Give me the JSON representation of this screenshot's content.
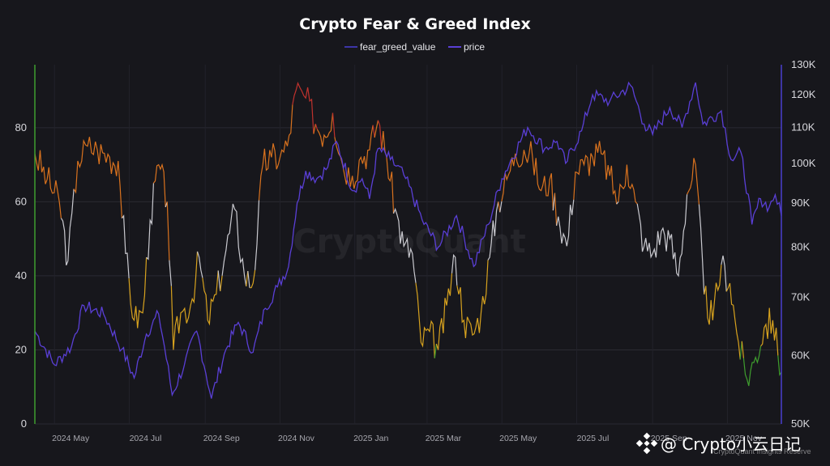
{
  "chart_data": {
    "type": "line",
    "title": "Crypto Fear & Greed Index",
    "legend_position": "top-center",
    "grid": true,
    "x_range": [
      "2024-04-15",
      "2025-12-15"
    ],
    "x_ticks": [
      "2024 May",
      "2024 Jul",
      "2024 Sep",
      "2024 Nov",
      "2025 Jan",
      "2025 Mar",
      "2025 May",
      "2025 Jul",
      "2025 Sep",
      "2025 Nov"
    ],
    "y_left": {
      "ylim": [
        0,
        97
      ],
      "ticks": [
        0,
        20,
        40,
        60,
        80
      ]
    },
    "y_right": {
      "scale": "log",
      "ylim": [
        50000,
        130000
      ],
      "ticks": [
        "50K",
        "60K",
        "70K",
        "80K",
        "90K",
        "100K",
        "110K",
        "120K",
        "130K"
      ]
    },
    "series": [
      {
        "name": "fear_greed_value",
        "axis": "left",
        "color": "#3d35a8",
        "zone_colors": {
          "extreme_fear": "#3f9e2e",
          "fear": "#d7a21e",
          "neutral": "#c9c9cf",
          "greed": "#d9721e",
          "extreme_greed": "#c0322d"
        },
        "points": [
          [
            "2024-04-15",
            73
          ],
          [
            "2024-04-25",
            66
          ],
          [
            "2024-05-05",
            60
          ],
          [
            "2024-05-12",
            44
          ],
          [
            "2024-05-20",
            71
          ],
          [
            "2024-05-28",
            75
          ],
          [
            "2024-06-05",
            74
          ],
          [
            "2024-06-15",
            72
          ],
          [
            "2024-06-22",
            71
          ],
          [
            "2024-06-28",
            46
          ],
          [
            "2024-07-05",
            28
          ],
          [
            "2024-07-12",
            30
          ],
          [
            "2024-07-18",
            55
          ],
          [
            "2024-07-25",
            70
          ],
          [
            "2024-08-01",
            60
          ],
          [
            "2024-08-06",
            20
          ],
          [
            "2024-08-12",
            30
          ],
          [
            "2024-08-20",
            32
          ],
          [
            "2024-08-27",
            45
          ],
          [
            "2024-09-03",
            28
          ],
          [
            "2024-09-10",
            35
          ],
          [
            "2024-09-18",
            47
          ],
          [
            "2024-09-25",
            58
          ],
          [
            "2024-10-03",
            40
          ],
          [
            "2024-10-10",
            38
          ],
          [
            "2024-10-18",
            70
          ],
          [
            "2024-10-25",
            72
          ],
          [
            "2024-11-01",
            72
          ],
          [
            "2024-11-07",
            75
          ],
          [
            "2024-11-14",
            90
          ],
          [
            "2024-11-22",
            88
          ],
          [
            "2024-11-30",
            81
          ],
          [
            "2024-12-07",
            78
          ],
          [
            "2024-12-14",
            84
          ],
          [
            "2024-12-22",
            70
          ],
          [
            "2024-12-30",
            67
          ],
          [
            "2025-01-06",
            72
          ],
          [
            "2025-01-13",
            74
          ],
          [
            "2025-01-20",
            82
          ],
          [
            "2025-01-27",
            72
          ],
          [
            "2025-02-03",
            58
          ],
          [
            "2025-02-10",
            48
          ],
          [
            "2025-02-17",
            46
          ],
          [
            "2025-02-24",
            22
          ],
          [
            "2025-03-03",
            25
          ],
          [
            "2025-03-10",
            20
          ],
          [
            "2025-03-17",
            32
          ],
          [
            "2025-03-24",
            45
          ],
          [
            "2025-03-31",
            28
          ],
          [
            "2025-04-07",
            24
          ],
          [
            "2025-04-14",
            30
          ],
          [
            "2025-04-21",
            45
          ],
          [
            "2025-04-28",
            60
          ],
          [
            "2025-05-05",
            66
          ],
          [
            "2025-05-12",
            73
          ],
          [
            "2025-05-19",
            74
          ],
          [
            "2025-05-26",
            72
          ],
          [
            "2025-06-02",
            63
          ],
          [
            "2025-06-09",
            66
          ],
          [
            "2025-06-16",
            56
          ],
          [
            "2025-06-23",
            48
          ],
          [
            "2025-06-30",
            68
          ],
          [
            "2025-07-07",
            70
          ],
          [
            "2025-07-14",
            72
          ],
          [
            "2025-07-21",
            73
          ],
          [
            "2025-07-28",
            67
          ],
          [
            "2025-08-04",
            60
          ],
          [
            "2025-08-11",
            70
          ],
          [
            "2025-08-18",
            60
          ],
          [
            "2025-08-25",
            48
          ],
          [
            "2025-09-01",
            46
          ],
          [
            "2025-09-08",
            52
          ],
          [
            "2025-09-15",
            50
          ],
          [
            "2025-09-22",
            40
          ],
          [
            "2025-09-29",
            62
          ],
          [
            "2025-10-06",
            70
          ],
          [
            "2025-10-13",
            35
          ],
          [
            "2025-10-20",
            28
          ],
          [
            "2025-10-27",
            43
          ],
          [
            "2025-11-03",
            38
          ],
          [
            "2025-11-10",
            22
          ],
          [
            "2025-11-17",
            12
          ],
          [
            "2025-11-24",
            18
          ],
          [
            "2025-12-01",
            26
          ],
          [
            "2025-12-08",
            28
          ],
          [
            "2025-12-15",
            14
          ]
        ]
      },
      {
        "name": "price",
        "axis": "right",
        "color": "#5a3fd6",
        "points": [
          [
            "2024-04-15",
            64000
          ],
          [
            "2024-05-01",
            58500
          ],
          [
            "2024-05-15",
            61500
          ],
          [
            "2024-05-25",
            68500
          ],
          [
            "2024-06-10",
            67000
          ],
          [
            "2024-06-25",
            61000
          ],
          [
            "2024-07-05",
            56500
          ],
          [
            "2024-07-15",
            63500
          ],
          [
            "2024-07-25",
            67000
          ],
          [
            "2024-08-05",
            54000
          ],
          [
            "2024-08-15",
            58500
          ],
          [
            "2024-08-25",
            64000
          ],
          [
            "2024-09-06",
            53500
          ],
          [
            "2024-09-18",
            61000
          ],
          [
            "2024-09-28",
            65500
          ],
          [
            "2024-10-10",
            60500
          ],
          [
            "2024-10-20",
            68000
          ],
          [
            "2024-10-30",
            72000
          ],
          [
            "2024-11-08",
            76000
          ],
          [
            "2024-11-15",
            90000
          ],
          [
            "2024-11-22",
            98000
          ],
          [
            "2024-12-01",
            96000
          ],
          [
            "2024-12-10",
            99000
          ],
          [
            "2024-12-17",
            106000
          ],
          [
            "2024-12-30",
            93000
          ],
          [
            "2025-01-07",
            96000
          ],
          [
            "2025-01-13",
            91000
          ],
          [
            "2025-01-20",
            104000
          ],
          [
            "2025-01-30",
            101000
          ],
          [
            "2025-02-10",
            97000
          ],
          [
            "2025-02-25",
            86000
          ],
          [
            "2025-03-10",
            80000
          ],
          [
            "2025-03-25",
            87000
          ],
          [
            "2025-04-08",
            76000
          ],
          [
            "2025-04-20",
            85000
          ],
          [
            "2025-05-01",
            96000
          ],
          [
            "2025-05-22",
            110000
          ],
          [
            "2025-06-05",
            104000
          ],
          [
            "2025-06-15",
            106000
          ],
          [
            "2025-06-22",
            100000
          ],
          [
            "2025-07-05",
            109000
          ],
          [
            "2025-07-14",
            120000
          ],
          [
            "2025-07-28",
            118000
          ],
          [
            "2025-08-14",
            123000
          ],
          [
            "2025-08-25",
            111000
          ],
          [
            "2025-09-01",
            108000
          ],
          [
            "2025-09-15",
            116000
          ],
          [
            "2025-09-25",
            110000
          ],
          [
            "2025-10-06",
            124000
          ],
          [
            "2025-10-12",
            111000
          ],
          [
            "2025-10-27",
            115000
          ],
          [
            "2025-11-04",
            101000
          ],
          [
            "2025-11-12",
            103000
          ],
          [
            "2025-11-21",
            85000
          ],
          [
            "2025-11-28",
            91000
          ],
          [
            "2025-12-05",
            89000
          ],
          [
            "2025-12-10",
            92000
          ],
          [
            "2025-12-15",
            87000
          ]
        ]
      }
    ]
  },
  "watermark": "CryptoQuant",
  "source_note": "CryptoQuant Insights Reserve",
  "brand": {
    "icon": "binance-logo-icon",
    "text": "@ Crypto小云日记"
  }
}
